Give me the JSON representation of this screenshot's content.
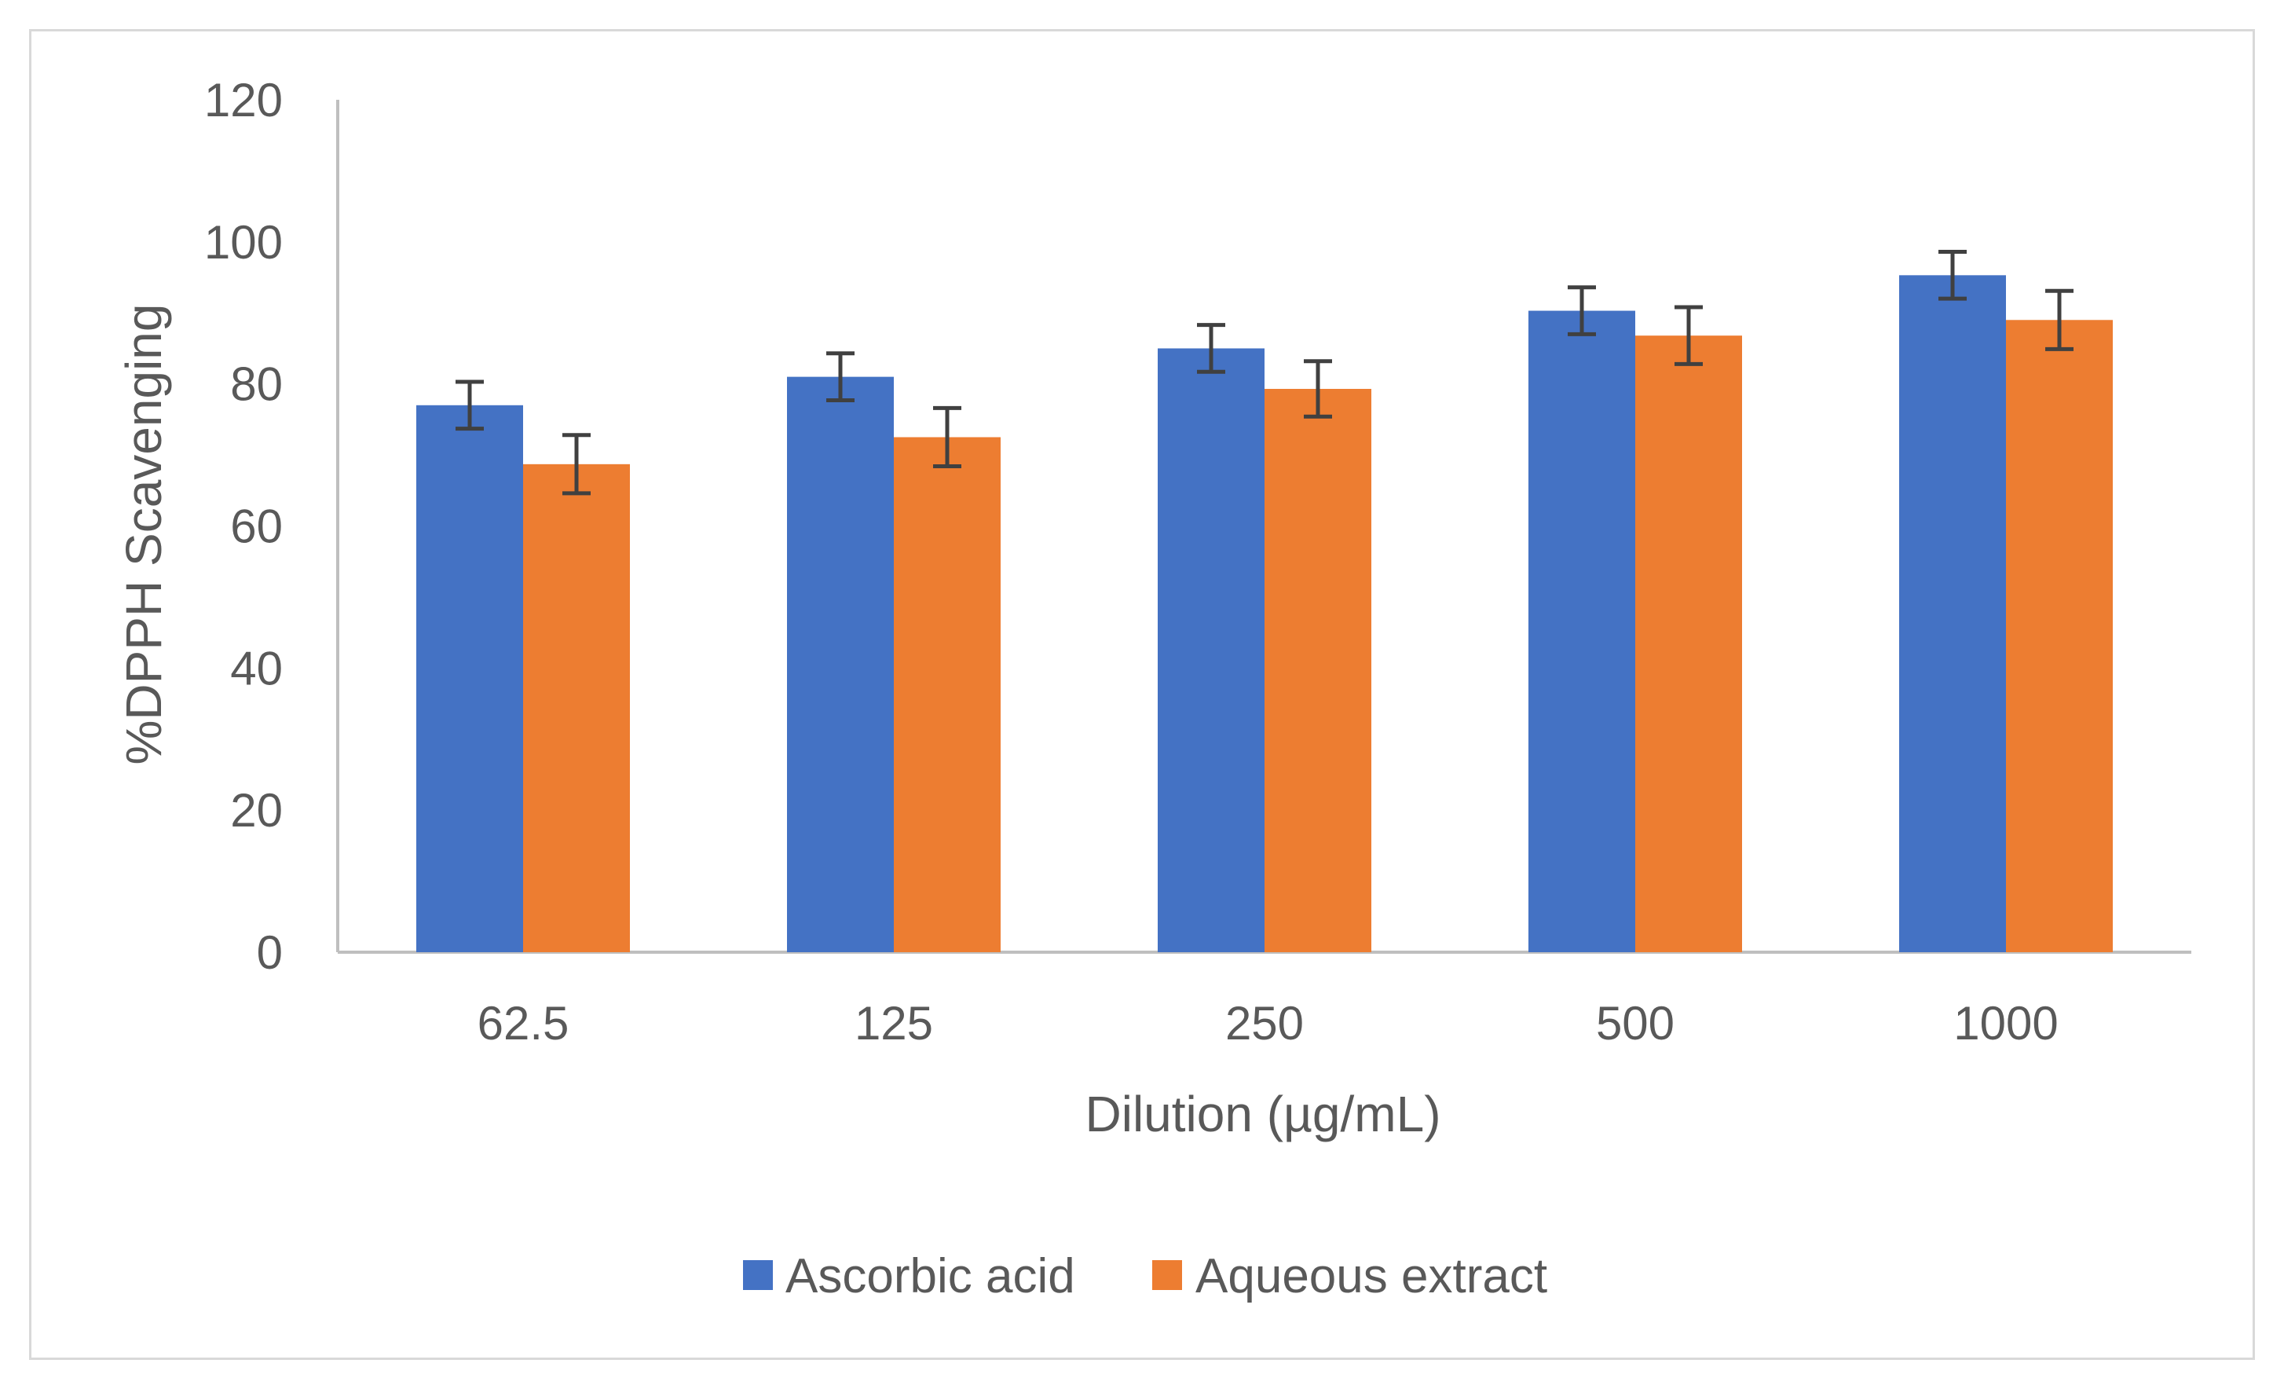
{
  "chart_data": {
    "type": "bar",
    "title": "",
    "xlabel": "Dilution (µg/mL)",
    "ylabel": "%DPPH Scavenging",
    "ylim": [
      0,
      120
    ],
    "yticks": [
      0,
      20,
      40,
      60,
      80,
      100,
      120
    ],
    "categories": [
      "62.5",
      "125",
      "250",
      "500",
      "1000"
    ],
    "series": [
      {
        "name": "Ascorbic acid",
        "color": "#4472c4",
        "values": [
          77,
          81,
          85,
          90.3,
          95.3
        ],
        "errors": [
          3.3,
          3.3,
          3.3,
          3.3,
          3.3
        ]
      },
      {
        "name": "Aqueous extract",
        "color": "#ed7d31",
        "values": [
          68.7,
          72.5,
          79.3,
          86.8,
          89
        ],
        "errors": [
          4.1,
          4.1,
          3.9,
          4.0,
          4.1
        ]
      }
    ],
    "error_bar_color": "#404040",
    "axis_color": "#bfbfbf",
    "grid": false,
    "legend_position": "bottom"
  }
}
